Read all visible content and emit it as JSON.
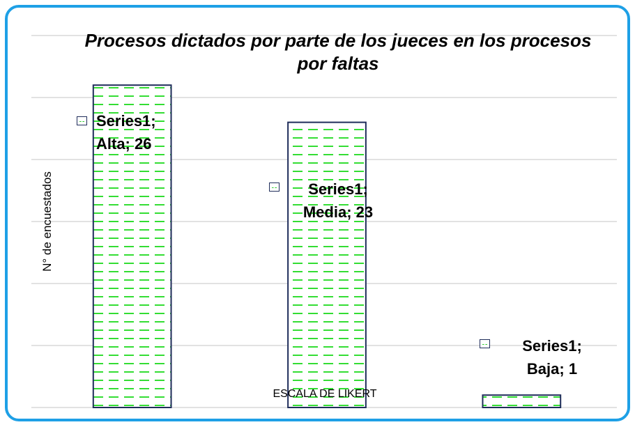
{
  "chart_data": {
    "type": "bar",
    "title": "Procesos dictados por parte de los jueces en los procesos por faltas",
    "y_label": "N° de encuestados",
    "x_label": "ESCALA DE LIKERT",
    "series": [
      {
        "name": "Series1",
        "color": "#33dd33",
        "values": [
          26,
          23,
          1
        ],
        "value_labels": [
          "Series1; Alta; 26",
          "Series1; Media; 23",
          "Series1; Baja; 1"
        ]
      }
    ],
    "ylim": [
      0,
      30
    ],
    "yticks": [
      0,
      5,
      10,
      15,
      20,
      25,
      30
    ],
    "grid": true
  }
}
